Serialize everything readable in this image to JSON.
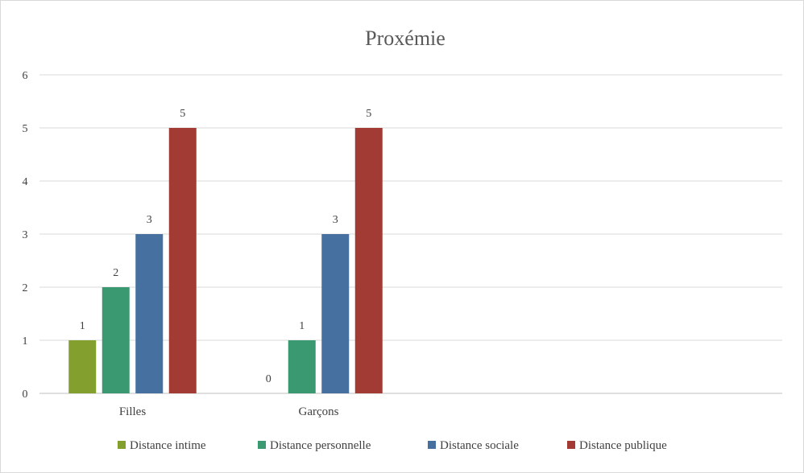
{
  "chart_data": {
    "type": "bar",
    "title": "Proxémie",
    "categories": [
      "Filles",
      "Garçons"
    ],
    "series": [
      {
        "name": "Distance intime",
        "color": "#83a02f",
        "values": [
          1,
          0
        ]
      },
      {
        "name": "Distance personnelle",
        "color": "#3a9971",
        "values": [
          2,
          1
        ]
      },
      {
        "name": "Distance sociale",
        "color": "#45709f",
        "values": [
          3,
          3
        ]
      },
      {
        "name": "Distance publique",
        "color": "#a23b33",
        "values": [
          5,
          5
        ]
      }
    ],
    "yticks": [
      "0",
      "1",
      "2",
      "3",
      "4",
      "5",
      "6"
    ],
    "ylim": [
      0,
      6
    ],
    "grid": true,
    "legend": "bottom",
    "data_labels": true
  }
}
